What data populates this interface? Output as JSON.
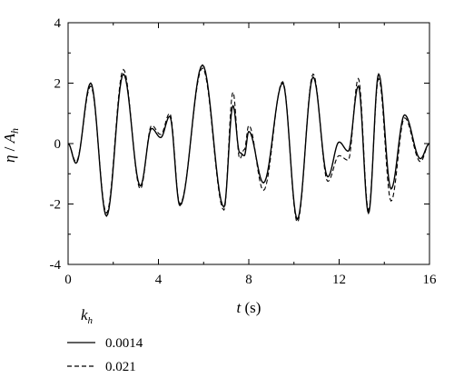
{
  "chart_data": {
    "type": "line",
    "xlabel": {
      "var": "t",
      "unit": " (s)"
    },
    "ylabel": {
      "var": "η",
      "sep": " / ",
      "base": "A",
      "sub": "h"
    },
    "xlim": [
      0,
      16
    ],
    "ylim": [
      -4,
      4
    ],
    "xticks": [
      0,
      4,
      8,
      12,
      16
    ],
    "yticks": [
      -4,
      -2,
      0,
      2,
      4
    ],
    "grid": false,
    "legend": {
      "position": "bottom-left",
      "title": {
        "base": "k",
        "sub": "h"
      }
    },
    "series": [
      {
        "name": "0.0014",
        "style": "solid",
        "x": [
          0,
          0.35,
          1.0,
          1.7,
          2.45,
          3.2,
          3.7,
          4.1,
          4.5,
          4.95,
          5.95,
          6.9,
          7.3,
          7.6,
          7.8,
          8.0,
          8.65,
          9.5,
          10.15,
          10.85,
          11.5,
          12.0,
          12.4,
          12.85,
          13.3,
          13.75,
          14.3,
          14.9,
          15.6,
          16.0
        ],
        "y": [
          0,
          -0.65,
          2.0,
          -2.4,
          2.3,
          -1.4,
          0.5,
          0.2,
          0.9,
          -2.05,
          2.6,
          -2.1,
          1.25,
          -0.3,
          -0.4,
          0.4,
          -1.3,
          2.0,
          -2.5,
          2.2,
          -1.1,
          0.05,
          -0.25,
          1.9,
          -2.3,
          2.3,
          -1.5,
          0.95,
          -0.5,
          0
        ]
      },
      {
        "name": "0.021",
        "style": "dashed",
        "x": [
          0,
          0.35,
          1.0,
          1.7,
          2.45,
          3.2,
          3.7,
          4.1,
          4.5,
          4.95,
          5.95,
          6.9,
          7.3,
          7.6,
          7.8,
          8.0,
          8.65,
          9.5,
          10.15,
          10.85,
          11.5,
          12.0,
          12.4,
          12.85,
          13.3,
          13.75,
          14.3,
          14.9,
          15.6,
          16.0
        ],
        "y": [
          0,
          -0.6,
          1.9,
          -2.3,
          2.45,
          -1.5,
          0.6,
          0.3,
          1.0,
          -2.0,
          2.5,
          -2.2,
          1.7,
          -0.5,
          -0.2,
          0.6,
          -1.55,
          2.05,
          -2.6,
          2.3,
          -1.25,
          -0.4,
          -0.55,
          2.15,
          -2.2,
          2.15,
          -1.9,
          0.85,
          -0.6,
          0
        ]
      }
    ]
  }
}
